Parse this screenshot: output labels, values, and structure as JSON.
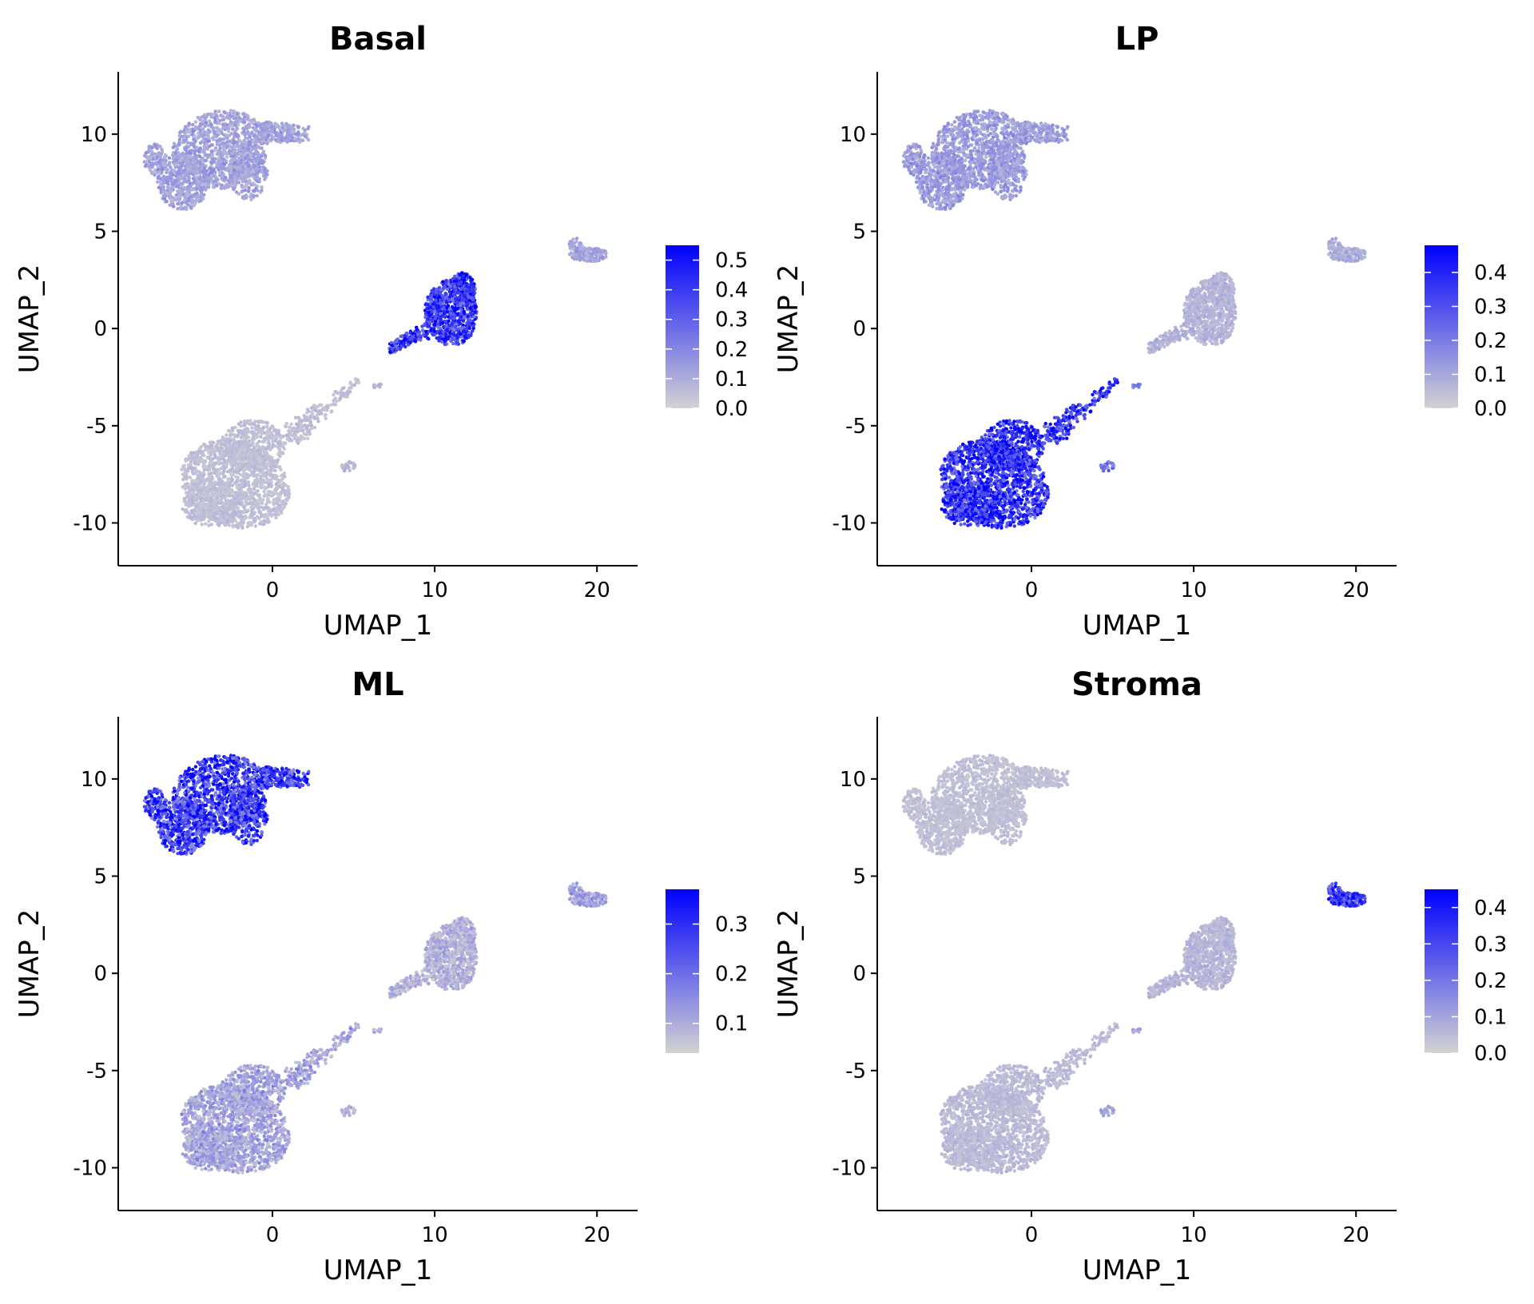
{
  "chart_data": [
    {
      "type": "scatter",
      "title": "Basal",
      "xlabel": "UMAP_1",
      "ylabel": "UMAP_2",
      "xlim": [
        -9.5,
        22.5
      ],
      "ylim": [
        -12.2,
        13.2
      ],
      "xticks": [
        0,
        10,
        20
      ],
      "yticks": [
        -10,
        -5,
        0,
        5,
        10
      ],
      "grid": false,
      "legend": {
        "placement": "right",
        "min": 0.0,
        "max": 0.55,
        "ticks": [
          0.0,
          0.1,
          0.2,
          0.3,
          0.4,
          0.5
        ],
        "low_color": "#d3d3d3",
        "high_color": "#0000ff"
      },
      "cluster_values": {
        "ML": 0.12,
        "LP": 0.05,
        "Basal": 0.4,
        "Stroma": 0.12,
        "Small": 0.08
      }
    },
    {
      "type": "scatter",
      "title": "LP",
      "xlabel": "UMAP_1",
      "ylabel": "UMAP_2",
      "xlim": [
        -9.5,
        22.5
      ],
      "ylim": [
        -12.2,
        13.2
      ],
      "xticks": [
        0,
        10,
        20
      ],
      "yticks": [
        -10,
        -5,
        0,
        5,
        10
      ],
      "grid": false,
      "legend": {
        "placement": "right",
        "min": 0.0,
        "max": 0.48,
        "ticks": [
          0.0,
          0.1,
          0.2,
          0.3,
          0.4
        ],
        "low_color": "#d3d3d3",
        "high_color": "#0000ff"
      },
      "cluster_values": {
        "ML": 0.12,
        "LP": 0.36,
        "Basal": 0.07,
        "Stroma": 0.08,
        "Small": 0.22
      }
    },
    {
      "type": "scatter",
      "title": "ML",
      "xlabel": "UMAP_1",
      "ylabel": "UMAP_2",
      "xlim": [
        -9.5,
        22.5
      ],
      "ylim": [
        -12.2,
        13.2
      ],
      "xticks": [
        0,
        10,
        20
      ],
      "yticks": [
        -10,
        -5,
        0,
        5,
        10
      ],
      "grid": false,
      "legend": {
        "placement": "right",
        "min": 0.04,
        "max": 0.37,
        "ticks": [
          0.1,
          0.2,
          0.3
        ],
        "low_color": "#d3d3d3",
        "high_color": "#0000ff"
      },
      "cluster_values": {
        "ML": 0.27,
        "LP": 0.11,
        "Basal": 0.09,
        "Stroma": 0.11,
        "Small": 0.09
      }
    },
    {
      "type": "scatter",
      "title": "Stroma",
      "xlabel": "UMAP_1",
      "ylabel": "UMAP_2",
      "xlim": [
        -9.5,
        22.5
      ],
      "ylim": [
        -12.2,
        13.2
      ],
      "xticks": [
        0,
        10,
        20
      ],
      "yticks": [
        -10,
        -5,
        0,
        5,
        10
      ],
      "grid": false,
      "legend": {
        "placement": "right",
        "min": 0.0,
        "max": 0.45,
        "ticks": [
          0.0,
          0.1,
          0.2,
          0.3,
          0.4
        ],
        "low_color": "#d3d3d3",
        "high_color": "#0000ff"
      },
      "cluster_values": {
        "ML": 0.04,
        "LP": 0.05,
        "Basal": 0.06,
        "Stroma": 0.33,
        "Small": 0.1
      }
    }
  ]
}
